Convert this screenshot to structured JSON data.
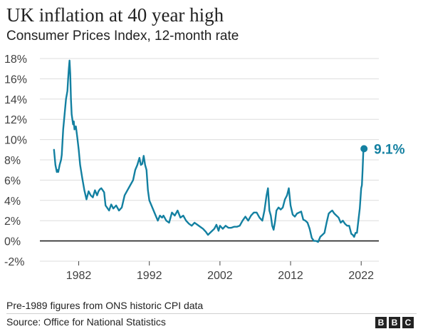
{
  "title": "UK inflation at 40 year high",
  "subtitle": "Consumer Prices Index, 12-month rate",
  "footnote": "Pre-1989 figures from ONS historic CPI data",
  "source": "Source: Office for National Statistics",
  "logo": {
    "letters": [
      "B",
      "B",
      "C"
    ]
  },
  "colors": {
    "line": "#1380A1",
    "gridline": "#dddddd",
    "zero_line": "#222222",
    "text": "#222222"
  },
  "chart_data": {
    "type": "line",
    "title": "UK inflation at 40 year high",
    "subtitle": "Consumer Prices Index, 12-month rate",
    "ylim": [
      -2,
      18
    ],
    "xlim": [
      1976.5,
      2024.5
    ],
    "grid": true,
    "y_ticks": [
      {
        "value": 18,
        "label": "18%"
      },
      {
        "value": 16,
        "label": "16%"
      },
      {
        "value": 14,
        "label": "14%"
      },
      {
        "value": 12,
        "label": "12%"
      },
      {
        "value": 10,
        "label": "10%"
      },
      {
        "value": 8,
        "label": "8%"
      },
      {
        "value": 6,
        "label": "6%"
      },
      {
        "value": 4,
        "label": "4%"
      },
      {
        "value": 2,
        "label": "2%"
      },
      {
        "value": 0,
        "label": "0%"
      },
      {
        "value": -2,
        "label": "-2%"
      }
    ],
    "x_ticks": [
      {
        "value": 1982,
        "label": "1982"
      },
      {
        "value": 1992,
        "label": "1992"
      },
      {
        "value": 2002,
        "label": "2002"
      },
      {
        "value": 2012,
        "label": "2012"
      },
      {
        "value": 2022,
        "label": "2022"
      }
    ],
    "series": [
      {
        "x": [
          1978.5,
          1978.7,
          1978.9,
          1979.0,
          1979.1,
          1979.3,
          1979.5,
          1979.6,
          1979.8,
          1980.0,
          1980.2,
          1980.4,
          1980.5,
          1980.6,
          1980.7,
          1980.8,
          1980.9,
          1981.0,
          1981.1,
          1981.2,
          1981.3,
          1981.4,
          1981.6,
          1981.8,
          1982.0,
          1982.2,
          1982.5,
          1982.8,
          1983.1,
          1983.4,
          1983.7,
          1984.0,
          1984.3,
          1984.6,
          1984.8,
          1985.0,
          1985.2,
          1985.4,
          1985.6,
          1985.8,
          1986.0,
          1986.3,
          1986.6,
          1986.9,
          1987.3,
          1987.7,
          1988.1,
          1988.5,
          1988.9,
          1989.3,
          1989.7,
          1990.0,
          1990.3,
          1990.6,
          1990.8,
          1991.0,
          1991.2,
          1991.4,
          1991.6,
          1991.8,
          1992.0,
          1992.3,
          1992.6,
          1992.9,
          1993.2,
          1993.5,
          1993.8,
          1994.0,
          1994.4,
          1994.8,
          1995.2,
          1995.6,
          1996.0,
          1996.4,
          1996.8,
          1997.2,
          1997.6,
          1998.0,
          1998.4,
          1998.8,
          1999.2,
          1999.6,
          2000.0,
          2000.3,
          2000.6,
          2000.9,
          2001.2,
          2001.5,
          2001.8,
          2002.0,
          2002.4,
          2002.8,
          2003.2,
          2003.6,
          2004.0,
          2004.4,
          2004.8,
          2005.2,
          2005.6,
          2006.0,
          2006.4,
          2006.8,
          2007.2,
          2007.6,
          2008.0,
          2008.3,
          2008.6,
          2008.8,
          2009.0,
          2009.2,
          2009.4,
          2009.6,
          2009.8,
          2010.0,
          2010.3,
          2010.6,
          2010.9,
          2011.2,
          2011.5,
          2011.75,
          2012.0,
          2012.3,
          2012.6,
          2012.9,
          2013.2,
          2013.5,
          2013.8,
          2014.1,
          2014.4,
          2014.7,
          2015.0,
          2015.3,
          2015.6,
          2015.9,
          2016.2,
          2016.5,
          2016.8,
          2017.1,
          2017.4,
          2017.7,
          2017.9,
          2018.2,
          2018.5,
          2018.8,
          2019.1,
          2019.4,
          2019.7,
          2020.0,
          2020.3,
          2020.6,
          2020.8,
          2021.0,
          2021.2,
          2021.4,
          2021.6,
          2021.8,
          2022.0,
          2022.1,
          2022.2,
          2022.3,
          2022.4
        ],
        "y": [
          9.0,
          7.5,
          6.8,
          7.0,
          6.8,
          7.5,
          8.0,
          8.5,
          11.0,
          12.5,
          14.0,
          14.8,
          16.0,
          17.0,
          17.8,
          16.5,
          14.0,
          12.5,
          12.0,
          11.5,
          11.8,
          11.0,
          11.3,
          10.2,
          9.0,
          7.5,
          6.2,
          5.0,
          4.1,
          4.9,
          4.5,
          4.3,
          5.0,
          4.5,
          4.9,
          5.1,
          5.2,
          5.0,
          4.8,
          3.5,
          3.3,
          3.0,
          3.6,
          3.2,
          3.5,
          3.0,
          3.3,
          4.5,
          5.0,
          5.5,
          6.0,
          7.0,
          7.5,
          8.2,
          7.5,
          7.6,
          8.4,
          7.5,
          7.0,
          5.0,
          4.0,
          3.5,
          3.0,
          2.5,
          2.0,
          2.5,
          2.3,
          2.5,
          2.0,
          1.8,
          2.8,
          2.5,
          3.0,
          2.3,
          2.5,
          2.0,
          1.7,
          1.5,
          1.8,
          1.6,
          1.4,
          1.2,
          0.9,
          0.6,
          0.8,
          1.0,
          1.2,
          1.6,
          1.0,
          1.5,
          1.2,
          1.5,
          1.3,
          1.3,
          1.4,
          1.4,
          1.5,
          2.0,
          2.4,
          2.0,
          2.5,
          2.8,
          2.8,
          2.3,
          2.0,
          3.0,
          4.5,
          5.2,
          3.0,
          2.5,
          1.5,
          1.1,
          1.9,
          3.0,
          3.3,
          3.1,
          3.3,
          4.1,
          4.5,
          5.2,
          3.5,
          2.6,
          2.4,
          2.7,
          2.8,
          2.9,
          2.1,
          2.0,
          1.8,
          1.2,
          0.3,
          0.0,
          0.0,
          -0.1,
          0.4,
          0.6,
          0.8,
          1.8,
          2.7,
          2.9,
          3.0,
          2.7,
          2.5,
          2.3,
          1.8,
          2.0,
          1.7,
          1.5,
          1.5,
          0.7,
          0.6,
          0.4,
          0.8,
          0.8,
          2.0,
          3.2,
          5.2,
          5.5,
          7.0,
          8.8,
          9.1
        ],
        "color": "#1380A1"
      }
    ],
    "annotation": {
      "x": 2022.4,
      "y": 9.1,
      "label": "9.1%"
    }
  }
}
